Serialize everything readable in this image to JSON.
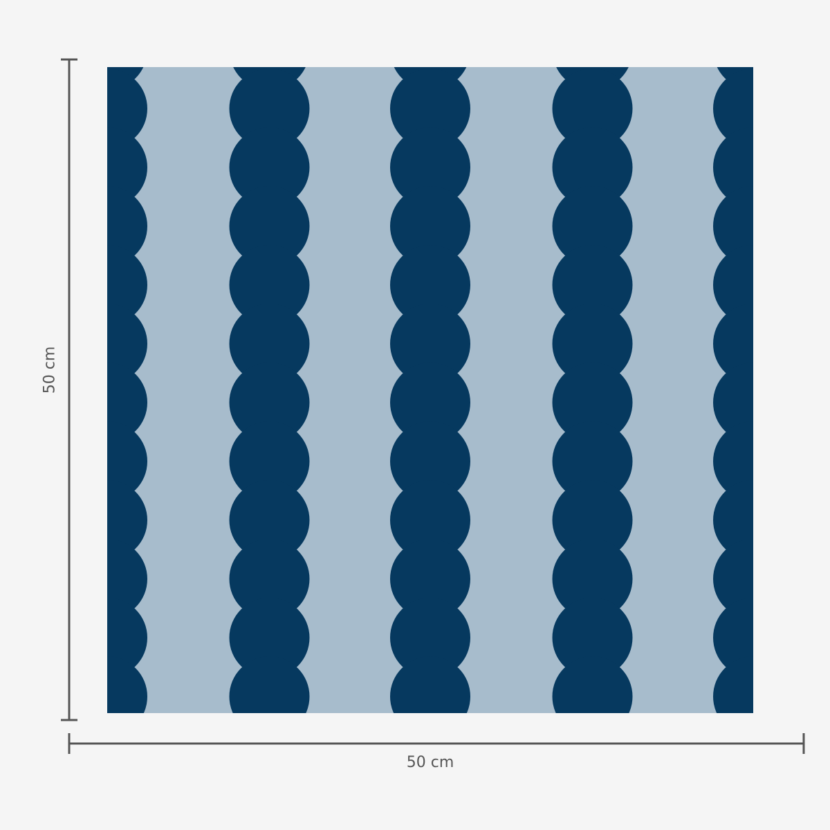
{
  "dimensions": {
    "width_label": "50 cm",
    "height_label": "50 cm"
  },
  "colors": {
    "background": "#f5f5f5",
    "pattern_light": "#a7bccc",
    "pattern_dark": "#06395f",
    "dimension_line": "#555555"
  },
  "pattern": {
    "type": "scalloped vertical stripes",
    "stripe_count_visible": 5
  }
}
